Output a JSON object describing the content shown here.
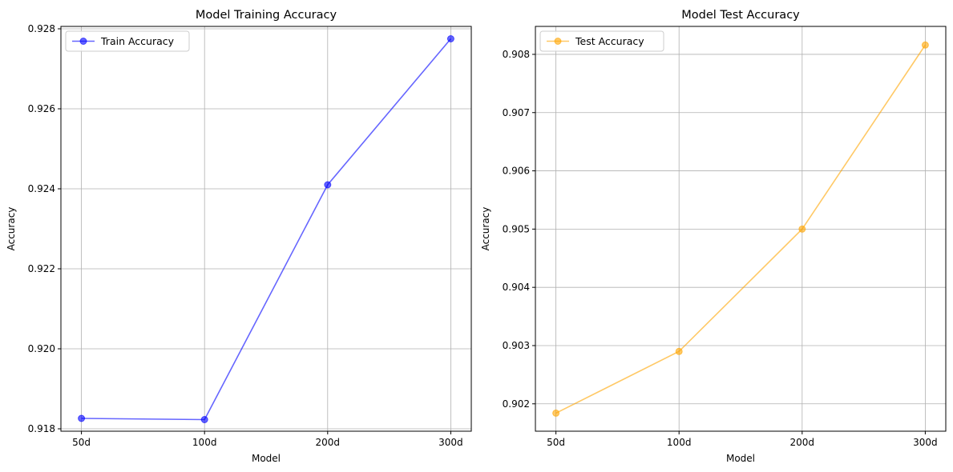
{
  "chart_data": [
    {
      "type": "line",
      "title": "Model Training Accuracy",
      "xlabel": "Model",
      "ylabel": "Accuracy",
      "categories": [
        "50d",
        "100d",
        "200d",
        "300d"
      ],
      "series": [
        {
          "name": "Train Accuracy",
          "values": [
            0.91826,
            0.91823,
            0.9241,
            0.92775
          ],
          "color": "#0000ff"
        }
      ],
      "ylim": [
        0.91794,
        0.92806
      ],
      "yticks": [
        0.918,
        0.92,
        0.922,
        0.924,
        0.926,
        0.928
      ],
      "yticklabels": [
        "0.918",
        "0.920",
        "0.922",
        "0.924",
        "0.926",
        "0.928"
      ],
      "grid": true,
      "legend_position": "top-left"
    },
    {
      "type": "line",
      "title": "Model Test Accuracy",
      "xlabel": "Model",
      "ylabel": "Accuracy",
      "categories": [
        "50d",
        "100d",
        "200d",
        "300d"
      ],
      "series": [
        {
          "name": "Test Accuracy",
          "values": [
            0.90184,
            0.9029,
            0.905,
            0.90816
          ],
          "color": "#ffa500"
        }
      ],
      "ylim": [
        0.90153,
        0.90848
      ],
      "yticks": [
        0.902,
        0.903,
        0.904,
        0.905,
        0.906,
        0.907,
        0.908
      ],
      "yticklabels": [
        "0.902",
        "0.903",
        "0.904",
        "0.905",
        "0.906",
        "0.907",
        "0.908"
      ],
      "grid": true,
      "legend_position": "top-left"
    }
  ]
}
